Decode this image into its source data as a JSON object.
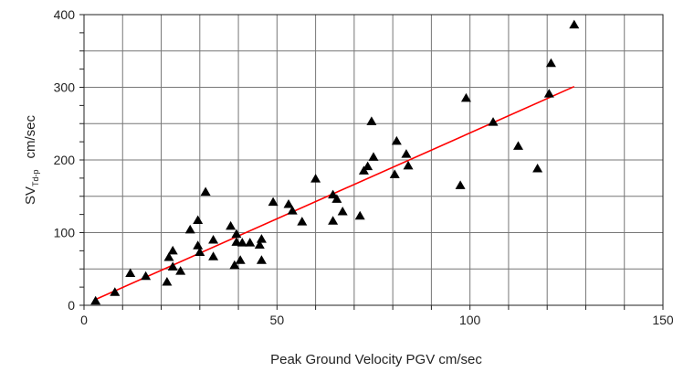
{
  "chart_data": {
    "type": "scatter",
    "title": "",
    "xlabel": "Peak Ground Velocity PGV cm/sec",
    "ylabel": "SV",
    "ylabel_subscript": "Td-p",
    "ylabel_unit": "cm/sec",
    "xlim": [
      0,
      150
    ],
    "ylim": [
      0,
      400
    ],
    "x_ticks": [
      0,
      50,
      100,
      150
    ],
    "y_ticks": [
      0,
      100,
      200,
      300,
      400
    ],
    "x_tick_labels": [
      "0",
      "50",
      "100",
      "150"
    ],
    "y_tick_labels": [
      "0",
      "100",
      "200",
      "300",
      "400"
    ],
    "grid": true,
    "legend": "none",
    "marker": "triangle",
    "marker_color": "#000000",
    "fit_line_color": "#ff0000",
    "fit_line": {
      "x": [
        3,
        127
      ],
      "y": [
        8,
        301
      ]
    },
    "series": [
      {
        "x": [
          3,
          8,
          12,
          16,
          21.5,
          22,
          23,
          23,
          25,
          27.5,
          29.5,
          29.5,
          30,
          31.5,
          33.5,
          33.5,
          38,
          39,
          39.5,
          39.5,
          40.5,
          41,
          43,
          45.5,
          46,
          46,
          49,
          53,
          54,
          56.5,
          60,
          64.5,
          64.5,
          65.5,
          67,
          71.5,
          72.5,
          73.5,
          74.5,
          75,
          80.5,
          81,
          83.5,
          84,
          97.5,
          99,
          106,
          112.5,
          117.5,
          120.5,
          121,
          127
        ],
        "y": [
          6,
          18,
          44,
          40,
          32,
          66,
          75,
          53,
          47,
          104,
          117,
          82,
          73,
          156,
          90,
          67,
          109,
          55,
          98,
          87,
          62,
          86,
          86,
          83,
          91,
          62,
          142,
          139,
          130,
          115,
          174,
          152,
          116,
          146,
          129,
          123,
          185,
          191,
          253,
          204,
          180,
          226,
          208,
          192,
          165,
          285,
          252,
          219,
          188,
          291,
          333,
          386
        ]
      }
    ]
  }
}
